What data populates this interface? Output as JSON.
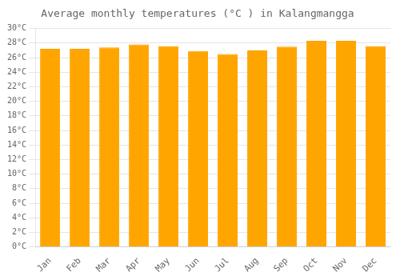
{
  "chart_data": {
    "type": "bar",
    "title": "Average monthly temperatures (°C ) in Kalangmangga",
    "categories": [
      "Jan",
      "Feb",
      "Mar",
      "Apr",
      "May",
      "Jun",
      "Jul",
      "Aug",
      "Sep",
      "Oct",
      "Nov",
      "Dec"
    ],
    "values": [
      27.2,
      27.2,
      27.4,
      27.8,
      27.6,
      26.9,
      26.5,
      27.0,
      27.5,
      28.3,
      28.3,
      27.6
    ],
    "color": "#FFA500",
    "ylim": [
      0,
      30
    ],
    "yticks": [
      {
        "value": 0,
        "label": "0°C"
      },
      {
        "value": 2,
        "label": "2°C"
      },
      {
        "value": 4,
        "label": "4°C"
      },
      {
        "value": 6,
        "label": "6°C"
      },
      {
        "value": 8,
        "label": "8°C"
      },
      {
        "value": 10,
        "label": "10°C"
      },
      {
        "value": 12,
        "label": "12°C"
      },
      {
        "value": 14,
        "label": "14°C"
      },
      {
        "value": 16,
        "label": "16°C"
      },
      {
        "value": 18,
        "label": "18°C"
      },
      {
        "value": 20,
        "label": "20°C"
      },
      {
        "value": 22,
        "label": "22°C"
      },
      {
        "value": 24,
        "label": "24°C"
      },
      {
        "value": 26,
        "label": "26°C"
      },
      {
        "value": 28,
        "label": "28°C"
      },
      {
        "value": 30,
        "label": "30°C"
      }
    ],
    "grid": true
  }
}
